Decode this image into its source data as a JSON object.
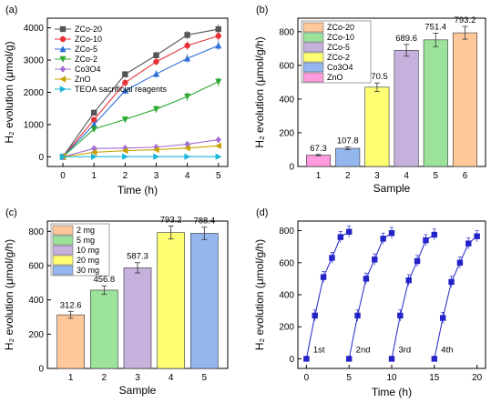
{
  "chart_data": [
    {
      "panel": "(a)",
      "type": "line",
      "xlabel": "Time (h)",
      "ylabel": "H₂ evolution (μmol/g)",
      "xlim": [
        -0.5,
        5.3
      ],
      "ylim": [
        -300,
        4300
      ],
      "xticks": [
        0,
        1,
        2,
        3,
        4,
        5
      ],
      "yticks": [
        0,
        1000,
        2000,
        3000,
        4000
      ],
      "x": [
        0,
        1,
        2,
        3,
        4,
        5
      ],
      "legend_position": "top-left",
      "series": [
        {
          "name": "ZCo-20",
          "color": "#555555",
          "marker": "square",
          "values": [
            0,
            1370,
            2560,
            3150,
            3780,
            3960
          ]
        },
        {
          "name": "ZCo-10",
          "color": "#e8333a",
          "marker": "circle",
          "values": [
            0,
            1150,
            2300,
            2950,
            3450,
            3750
          ]
        },
        {
          "name": "ZCo-5",
          "color": "#2b6fd6",
          "marker": "triangle-up",
          "values": [
            0,
            1000,
            2050,
            2570,
            3050,
            3450
          ]
        },
        {
          "name": "ZCo-2",
          "color": "#2da832",
          "marker": "triangle-down",
          "values": [
            0,
            860,
            1160,
            1480,
            1870,
            2330
          ]
        },
        {
          "name": "Co3O4",
          "color": "#a36dd4",
          "marker": "diamond",
          "values": [
            0,
            260,
            270,
            300,
            390,
            530
          ]
        },
        {
          "name": "ZnO",
          "color": "#c8a200",
          "marker": "triangle-left",
          "values": [
            0,
            140,
            190,
            220,
            270,
            340
          ]
        },
        {
          "name": "TEOA sacrificial reagents",
          "color": "#19b6d8",
          "marker": "triangle-right",
          "values": [
            0,
            5,
            5,
            5,
            5,
            5
          ]
        }
      ]
    },
    {
      "panel": "(b)",
      "type": "bar",
      "xlabel": "Sample",
      "ylabel": "H₂ evolution (μmol/g/h)",
      "ylim": [
        0,
        880
      ],
      "yticks": [
        0,
        200,
        400,
        600,
        800
      ],
      "categories": [
        "1",
        "2",
        "3",
        "4",
        "5",
        "6"
      ],
      "values": [
        67.3,
        107.8,
        470.5,
        689.6,
        751.4,
        793.2
      ],
      "errors": [
        4,
        8,
        25,
        35,
        40,
        38
      ],
      "labels": [
        "67.3",
        "107.8",
        "470.5",
        "689.6",
        "751.4",
        "793.2"
      ],
      "legend_position": "top-left",
      "legend": [
        {
          "name": "ZCo-20",
          "color": "#ffc89a"
        },
        {
          "name": "ZCo-10",
          "color": "#9be29b"
        },
        {
          "name": "ZCo-5",
          "color": "#c6b0dc"
        },
        {
          "name": "ZCo-2",
          "color": "#ffff73"
        },
        {
          "name": "Co3O4",
          "color": "#93b6ee"
        },
        {
          "name": "ZnO",
          "color": "#ff9bde"
        }
      ],
      "bar_colors": [
        "#ff9bde",
        "#93b6ee",
        "#ffff73",
        "#c6b0dc",
        "#9be29b",
        "#ffc89a"
      ]
    },
    {
      "panel": "(c)",
      "type": "bar",
      "xlabel": "Sample",
      "ylabel": "H₂ evolution (μmol/g/h)",
      "ylim": [
        0,
        860
      ],
      "yticks": [
        0,
        200,
        400,
        600,
        800
      ],
      "categories": [
        "1",
        "2",
        "3",
        "4",
        "5"
      ],
      "values": [
        312.6,
        456.8,
        587.3,
        793.2,
        788.4
      ],
      "errors": [
        20,
        25,
        30,
        38,
        36
      ],
      "labels": [
        "312.6",
        "456.8",
        "587.3",
        "793.2",
        "788.4"
      ],
      "legend_position": "top-left",
      "legend": [
        {
          "name": "2 mg",
          "color": "#ffc89a"
        },
        {
          "name": "5 mg",
          "color": "#9be29b"
        },
        {
          "name": "10 mg",
          "color": "#c6b0dc"
        },
        {
          "name": "20 mg",
          "color": "#ffff73"
        },
        {
          "name": "30 mg",
          "color": "#93b6ee"
        }
      ],
      "bar_colors": [
        "#ffc89a",
        "#9be29b",
        "#c6b0dc",
        "#ffff73",
        "#93b6ee"
      ]
    },
    {
      "panel": "(d)",
      "type": "scatter",
      "xlabel": "Time (h)",
      "ylabel": "H₂ evolution (μmol/g/h)",
      "xlim": [
        -1,
        21
      ],
      "ylim": [
        -60,
        860
      ],
      "xticks": [
        0,
        5,
        10,
        15,
        20
      ],
      "yticks": [
        0,
        200,
        400,
        600,
        800
      ],
      "color": "#2323c8",
      "cycles": [
        {
          "label": "1st",
          "x": [
            0,
            1,
            2,
            3,
            4,
            5
          ],
          "y": [
            0,
            270,
            510,
            630,
            760,
            793
          ]
        },
        {
          "label": "2nd",
          "x": [
            5,
            6,
            7,
            8,
            9,
            10
          ],
          "y": [
            0,
            270,
            500,
            620,
            750,
            785
          ]
        },
        {
          "label": "3rd",
          "x": [
            10,
            11,
            12,
            13,
            14,
            15
          ],
          "y": [
            0,
            270,
            490,
            610,
            740,
            775
          ]
        },
        {
          "label": "4th",
          "x": [
            15,
            16,
            17,
            18,
            19,
            20
          ],
          "y": [
            0,
            255,
            480,
            600,
            720,
            765
          ]
        }
      ],
      "error": 35
    }
  ]
}
